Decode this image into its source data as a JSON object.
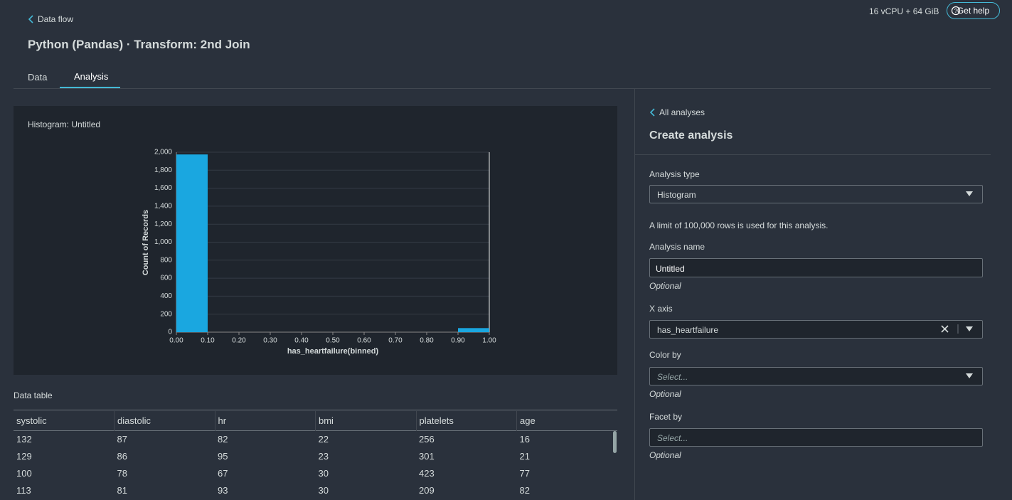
{
  "header": {
    "back_link": "Data flow",
    "title": "Python (Pandas) · Transform: 2nd Join",
    "instance": "16 vCPU + 64 GiB",
    "help": "Get help"
  },
  "tabs": [
    "Data",
    "Analysis"
  ],
  "chart_data": {
    "type": "histogram",
    "title": "Histogram: Untitled",
    "x_label": "has_heartfailure(binned)",
    "y_label": "Count of Records",
    "bins": [
      0,
      0.1,
      0.2,
      0.3,
      0.4,
      0.5,
      0.6,
      0.7,
      0.8,
      0.9,
      1.0
    ],
    "values": [
      1975,
      0,
      0,
      0,
      0,
      0,
      0,
      0,
      0,
      45
    ],
    "color": "#1aa7e0",
    "xlim": [
      0,
      1
    ],
    "xticks": [
      {
        "value": 0,
        "label": "0.00"
      },
      {
        "value": 0.1,
        "label": "0.10"
      },
      {
        "value": 0.2,
        "label": "0.20"
      },
      {
        "value": 0.3,
        "label": "0.30"
      },
      {
        "value": 0.4,
        "label": "0.40"
      },
      {
        "value": 0.5,
        "label": "0.50"
      },
      {
        "value": 0.6,
        "label": "0.60"
      },
      {
        "value": 0.7,
        "label": "0.70"
      },
      {
        "value": 0.8,
        "label": "0.80"
      },
      {
        "value": 0.9,
        "label": "0.90"
      },
      {
        "value": 1.0,
        "label": "1.00"
      }
    ],
    "ylim": [
      0,
      2000
    ],
    "yticks": [
      0,
      200,
      400,
      600,
      800,
      {
        "value": 1000,
        "label": "1,000"
      },
      {
        "value": 1200,
        "label": "1,200"
      },
      {
        "value": 1400,
        "label": "1,400"
      },
      {
        "value": 1600,
        "label": "1,600"
      },
      {
        "value": 1800,
        "label": "1,800"
      },
      {
        "value": 2000,
        "label": "2,000"
      }
    ],
    "grid": true
  },
  "table": {
    "title": "Data table",
    "columns": [
      "systolic",
      "diastolic",
      "hr",
      "bmi",
      "platelets",
      "age"
    ],
    "rows": [
      [
        "132",
        "87",
        "82",
        "22",
        "256",
        "16"
      ],
      [
        "129",
        "86",
        "95",
        "23",
        "301",
        "21"
      ],
      [
        "100",
        "78",
        "67",
        "30",
        "423",
        "77"
      ],
      [
        "113",
        "81",
        "93",
        "30",
        "209",
        "82"
      ]
    ]
  },
  "panel": {
    "back": "All analyses",
    "title": "Create analysis",
    "analysis_type_label": "Analysis type",
    "analysis_type": "Histogram",
    "limit_note": "A limit of 100,000 rows is used for this analysis.",
    "name_label": "Analysis name",
    "name_value": "Untitled",
    "name_hint": "Optional",
    "x_axis_label": "X axis",
    "x_axis_value": "has_heartfailure",
    "color_label": "Color by",
    "color_placeholder": "Select...",
    "color_hint": "Optional",
    "facet_label": "Facet by",
    "facet_placeholder": "Select...",
    "facet_hint": "Optional"
  }
}
